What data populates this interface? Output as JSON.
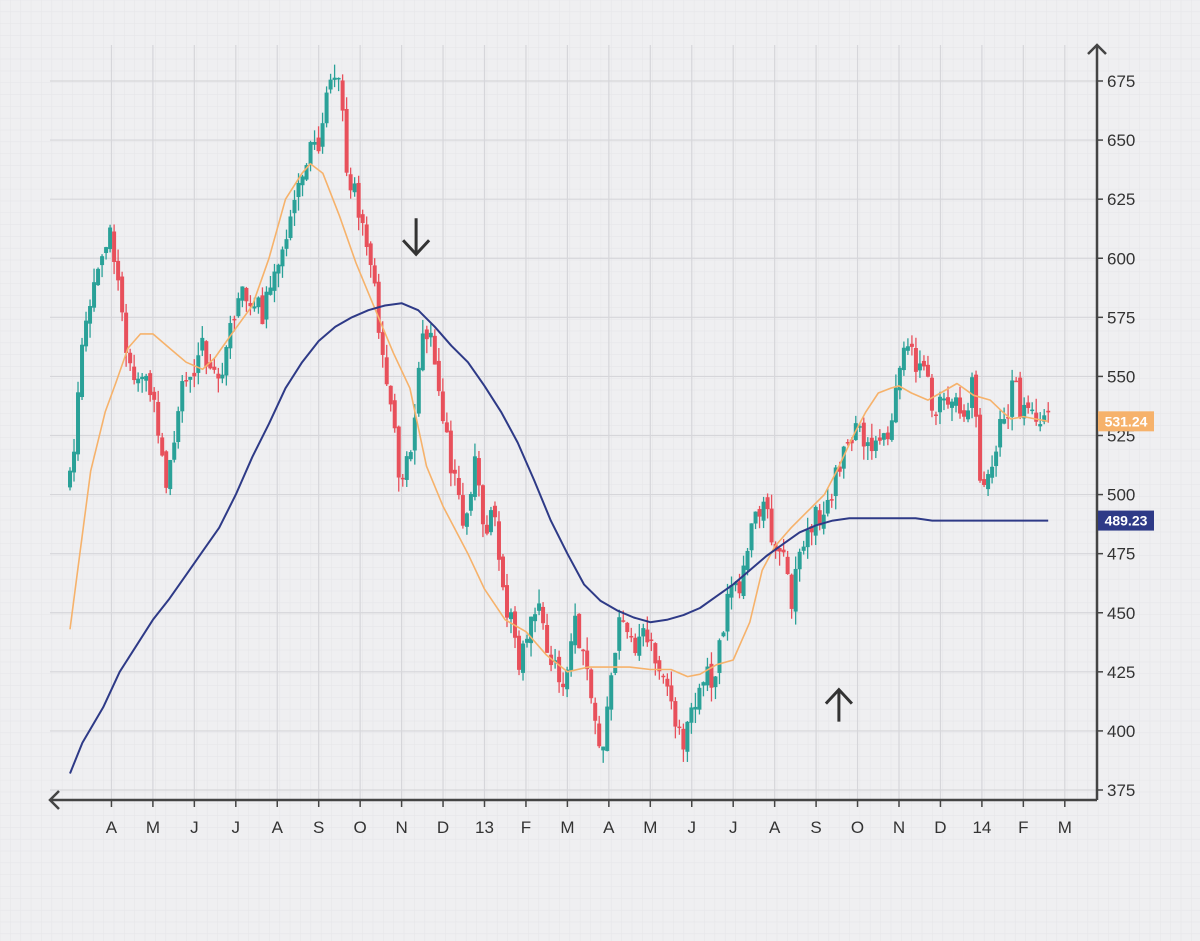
{
  "chart_data": {
    "type": "candlestick",
    "xlabel": "",
    "ylabel": "",
    "ylim": [
      370,
      690
    ],
    "y_ticks": [
      375,
      400,
      425,
      450,
      475,
      500,
      525,
      550,
      575,
      600,
      625,
      650,
      675
    ],
    "x_tick_labels": [
      "A",
      "M",
      "J",
      "J",
      "A",
      "S",
      "O",
      "N",
      "D",
      "13",
      "F",
      "M",
      "A",
      "M",
      "J",
      "J",
      "A",
      "S",
      "O",
      "N",
      "D",
      "14",
      "F",
      "M"
    ],
    "x_months_span": [
      0,
      24.7
    ],
    "grid": true,
    "colors": {
      "up": "#2aa198",
      "down": "#e8505b",
      "fast_ma": "#f6b26b",
      "slow_ma": "#2e3a87",
      "axis": "#444444",
      "grid_major": "#d6d6da",
      "grid_minor": "#e6e6e9",
      "arrow": "#333333"
    },
    "price_path": [
      [
        0.0,
        505
      ],
      [
        0.1,
        515
      ],
      [
        0.3,
        570
      ],
      [
        0.5,
        585
      ],
      [
        0.75,
        600
      ],
      [
        0.95,
        612
      ],
      [
        1.1,
        600
      ],
      [
        1.3,
        570
      ],
      [
        1.5,
        550
      ],
      [
        1.8,
        545
      ],
      [
        2.1,
        535
      ],
      [
        2.35,
        505
      ],
      [
        2.6,
        535
      ],
      [
        2.9,
        555
      ],
      [
        3.2,
        560
      ],
      [
        3.5,
        552
      ],
      [
        3.8,
        560
      ],
      [
        4.1,
        585
      ],
      [
        4.4,
        575
      ],
      [
        4.8,
        580
      ],
      [
        5.0,
        595
      ],
      [
        5.3,
        610
      ],
      [
        5.6,
        640
      ],
      [
        5.9,
        645
      ],
      [
        6.2,
        665
      ],
      [
        6.45,
        676
      ],
      [
        6.65,
        645
      ],
      [
        6.9,
        622
      ],
      [
        7.2,
        600
      ],
      [
        7.5,
        570
      ],
      [
        7.8,
        530
      ],
      [
        8.0,
        505
      ],
      [
        8.2,
        520
      ],
      [
        8.5,
        565
      ],
      [
        8.8,
        560
      ],
      [
        9.0,
        530
      ],
      [
        9.3,
        505
      ],
      [
        9.5,
        485
      ],
      [
        9.75,
        515
      ],
      [
        10.0,
        485
      ],
      [
        10.2,
        490
      ],
      [
        10.5,
        455
      ],
      [
        10.8,
        430
      ],
      [
        11.0,
        440
      ],
      [
        11.3,
        460
      ],
      [
        11.6,
        430
      ],
      [
        11.9,
        420
      ],
      [
        12.2,
        445
      ],
      [
        12.5,
        430
      ],
      [
        12.8,
        385
      ],
      [
        13.0,
        415
      ],
      [
        13.3,
        450
      ],
      [
        13.6,
        435
      ],
      [
        13.9,
        440
      ],
      [
        14.2,
        430
      ],
      [
        14.5,
        415
      ],
      [
        14.8,
        385
      ],
      [
        15.0,
        410
      ],
      [
        15.3,
        420
      ],
      [
        15.6,
        428
      ],
      [
        15.9,
        455
      ],
      [
        16.2,
        465
      ],
      [
        16.5,
        495
      ],
      [
        16.8,
        490
      ],
      [
        17.1,
        480
      ],
      [
        17.4,
        455
      ],
      [
        17.7,
        478
      ],
      [
        18.0,
        490
      ],
      [
        18.3,
        500
      ],
      [
        18.6,
        515
      ],
      [
        18.9,
        525
      ],
      [
        19.2,
        525
      ],
      [
        19.5,
        520
      ],
      [
        19.8,
        530
      ],
      [
        20.0,
        560
      ],
      [
        20.3,
        560
      ],
      [
        20.6,
        548
      ],
      [
        20.9,
        535
      ],
      [
        21.2,
        545
      ],
      [
        21.5,
        530
      ],
      [
        21.8,
        545
      ],
      [
        22.0,
        500
      ],
      [
        22.2,
        510
      ],
      [
        22.5,
        530
      ],
      [
        22.8,
        545
      ],
      [
        23.0,
        535
      ],
      [
        23.3,
        530
      ],
      [
        23.6,
        538
      ]
    ],
    "fast_ma_path": [
      [
        0.0,
        443
      ],
      [
        0.2,
        470
      ],
      [
        0.5,
        510
      ],
      [
        0.85,
        535
      ],
      [
        1.1,
        547
      ],
      [
        1.4,
        562
      ],
      [
        1.7,
        568
      ],
      [
        2.0,
        568
      ],
      [
        2.4,
        562
      ],
      [
        2.8,
        556
      ],
      [
        3.2,
        553
      ],
      [
        3.5,
        558
      ],
      [
        3.9,
        568
      ],
      [
        4.4,
        580
      ],
      [
        4.8,
        600
      ],
      [
        5.2,
        625
      ],
      [
        5.6,
        636
      ],
      [
        5.8,
        640
      ],
      [
        6.1,
        636
      ],
      [
        6.5,
        618
      ],
      [
        6.9,
        598
      ],
      [
        7.3,
        581
      ],
      [
        7.8,
        560
      ],
      [
        8.2,
        545
      ],
      [
        8.6,
        512
      ],
      [
        9.0,
        495
      ],
      [
        9.6,
        475
      ],
      [
        10.0,
        460
      ],
      [
        10.5,
        447
      ],
      [
        11.0,
        442
      ],
      [
        11.5,
        432
      ],
      [
        12.0,
        425
      ],
      [
        12.5,
        427
      ],
      [
        13.0,
        427
      ],
      [
        13.5,
        427
      ],
      [
        14.0,
        426
      ],
      [
        14.5,
        426
      ],
      [
        14.9,
        423
      ],
      [
        15.2,
        424
      ],
      [
        15.6,
        428
      ],
      [
        16.0,
        430
      ],
      [
        16.4,
        446
      ],
      [
        16.7,
        468
      ],
      [
        17.0,
        478
      ],
      [
        17.4,
        486
      ],
      [
        17.8,
        493
      ],
      [
        18.2,
        500
      ],
      [
        18.5,
        510
      ],
      [
        18.9,
        525
      ],
      [
        19.2,
        535
      ],
      [
        19.5,
        543
      ],
      [
        19.8,
        545
      ],
      [
        20.0,
        546
      ],
      [
        20.3,
        543
      ],
      [
        20.7,
        540
      ],
      [
        21.0,
        543
      ],
      [
        21.4,
        547
      ],
      [
        21.8,
        542
      ],
      [
        22.2,
        540
      ],
      [
        22.5,
        535
      ],
      [
        22.7,
        532
      ],
      [
        23.0,
        533
      ],
      [
        23.3,
        532
      ],
      [
        23.6,
        531
      ]
    ],
    "slow_ma_path": [
      [
        0.0,
        382
      ],
      [
        0.3,
        395
      ],
      [
        0.8,
        410
      ],
      [
        1.2,
        425
      ],
      [
        1.6,
        436
      ],
      [
        2.0,
        447
      ],
      [
        2.4,
        456
      ],
      [
        2.8,
        466
      ],
      [
        3.2,
        476
      ],
      [
        3.6,
        486
      ],
      [
        4.0,
        500
      ],
      [
        4.4,
        516
      ],
      [
        4.8,
        530
      ],
      [
        5.2,
        545
      ],
      [
        5.6,
        556
      ],
      [
        6.0,
        565
      ],
      [
        6.4,
        571
      ],
      [
        6.8,
        575
      ],
      [
        7.2,
        578
      ],
      [
        7.6,
        580
      ],
      [
        8.0,
        581
      ],
      [
        8.4,
        578
      ],
      [
        8.8,
        571
      ],
      [
        9.2,
        563
      ],
      [
        9.6,
        556
      ],
      [
        10.0,
        546
      ],
      [
        10.4,
        535
      ],
      [
        10.8,
        522
      ],
      [
        11.2,
        506
      ],
      [
        11.6,
        489
      ],
      [
        12.0,
        475
      ],
      [
        12.4,
        462
      ],
      [
        12.8,
        455
      ],
      [
        13.2,
        451
      ],
      [
        13.6,
        448
      ],
      [
        14.0,
        446
      ],
      [
        14.4,
        447
      ],
      [
        14.8,
        449
      ],
      [
        15.2,
        452
      ],
      [
        15.6,
        457
      ],
      [
        16.0,
        462
      ],
      [
        16.4,
        468
      ],
      [
        16.8,
        474
      ],
      [
        17.2,
        479
      ],
      [
        17.6,
        484
      ],
      [
        18.0,
        487
      ],
      [
        18.4,
        489
      ],
      [
        18.8,
        490
      ],
      [
        19.2,
        490
      ],
      [
        19.6,
        490
      ],
      [
        20.0,
        490
      ],
      [
        20.4,
        490
      ],
      [
        20.8,
        489
      ],
      [
        21.2,
        489
      ],
      [
        21.6,
        489
      ],
      [
        22.0,
        489
      ],
      [
        22.4,
        489
      ],
      [
        22.8,
        489
      ],
      [
        23.2,
        489
      ],
      [
        23.6,
        489
      ]
    ],
    "last_values": {
      "fast_ma": "531.24",
      "slow_ma": "489.23"
    },
    "annotations": [
      {
        "type": "arrow-down",
        "x_month": 8.35,
        "y": 600
      },
      {
        "type": "arrow-up",
        "x_month": 18.55,
        "y": 420
      }
    ]
  }
}
